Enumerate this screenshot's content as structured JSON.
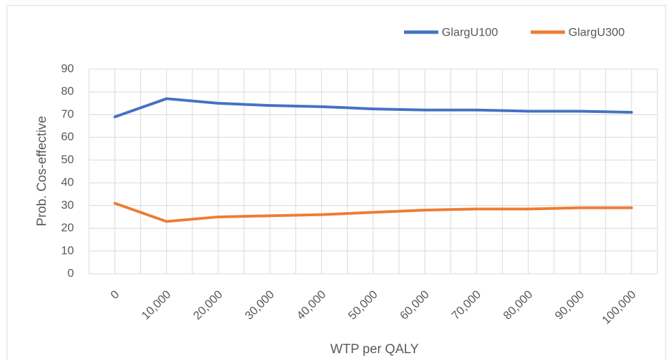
{
  "chart_data": {
    "type": "line",
    "x_label": "WTP per QALY",
    "y_label": "Prob. Cos-effective",
    "categories": [
      "0",
      "10,000",
      "20,000",
      "30,000",
      "40,000",
      "50,000",
      "60,000",
      "70,000",
      "80,000",
      "90,000",
      "100,000"
    ],
    "series": [
      {
        "name": "GlargU100",
        "color": "#4472c4",
        "values": [
          69,
          77,
          75,
          74,
          73.5,
          72.5,
          72,
          72,
          71.5,
          71.5,
          71
        ]
      },
      {
        "name": "GlargU300",
        "color": "#ed7d31",
        "values": [
          31,
          23,
          25,
          25.5,
          26,
          27,
          28,
          28.5,
          28.5,
          29,
          29
        ]
      }
    ],
    "ylim": [
      0,
      90
    ],
    "yticks": [
      0,
      10,
      20,
      30,
      40,
      50,
      60,
      70,
      80,
      90
    ],
    "grid": true,
    "legend": "top-right"
  }
}
